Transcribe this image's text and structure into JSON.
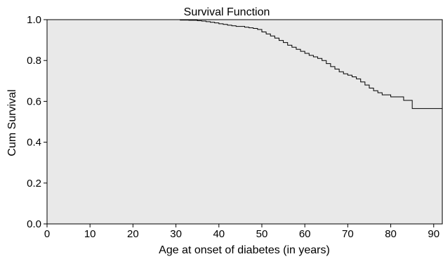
{
  "chart_data": {
    "type": "line",
    "title": "Survival Function",
    "xlabel": "Age at onset of diabetes (in years)",
    "ylabel": "Cum Survival",
    "xlim": [
      0,
      92
    ],
    "ylim": [
      0,
      1.0
    ],
    "x_ticks": [
      0,
      10,
      20,
      30,
      40,
      50,
      60,
      70,
      80,
      90
    ],
    "x_tick_labels": [
      "0",
      "10",
      "20",
      "30",
      "40",
      "50",
      "60",
      "70",
      "80",
      "90"
    ],
    "y_ticks": [
      0,
      0.2,
      0.4,
      0.6,
      0.8,
      1.0
    ],
    "y_tick_labels": [
      "0.0",
      "0.2",
      "0.4",
      "0.6",
      "0.8",
      "1.0"
    ],
    "grid": false,
    "step": true,
    "colors": {
      "plot_background": "#e9e9e9",
      "line": "#000000"
    },
    "series": [
      {
        "x": [
          26,
          31,
          33,
          35,
          36,
          37,
          38,
          39,
          40,
          41,
          42,
          43,
          44,
          46,
          47,
          48,
          49,
          50,
          51,
          52,
          53,
          54,
          55,
          56,
          57,
          58,
          59,
          60,
          61,
          62,
          63,
          64,
          65,
          66,
          67,
          68,
          69,
          70,
          71,
          72,
          73,
          74,
          75,
          76,
          77,
          78,
          80,
          83,
          85,
          92
        ],
        "y": [
          1.0,
          0.998,
          0.997,
          0.995,
          0.993,
          0.99,
          0.987,
          0.984,
          0.98,
          0.977,
          0.973,
          0.97,
          0.967,
          0.963,
          0.96,
          0.957,
          0.952,
          0.94,
          0.93,
          0.92,
          0.91,
          0.898,
          0.888,
          0.875,
          0.865,
          0.855,
          0.845,
          0.835,
          0.825,
          0.818,
          0.81,
          0.8,
          0.785,
          0.77,
          0.758,
          0.745,
          0.735,
          0.728,
          0.72,
          0.71,
          0.695,
          0.68,
          0.665,
          0.652,
          0.642,
          0.632,
          0.622,
          0.605,
          0.565,
          0.565
        ]
      }
    ]
  }
}
